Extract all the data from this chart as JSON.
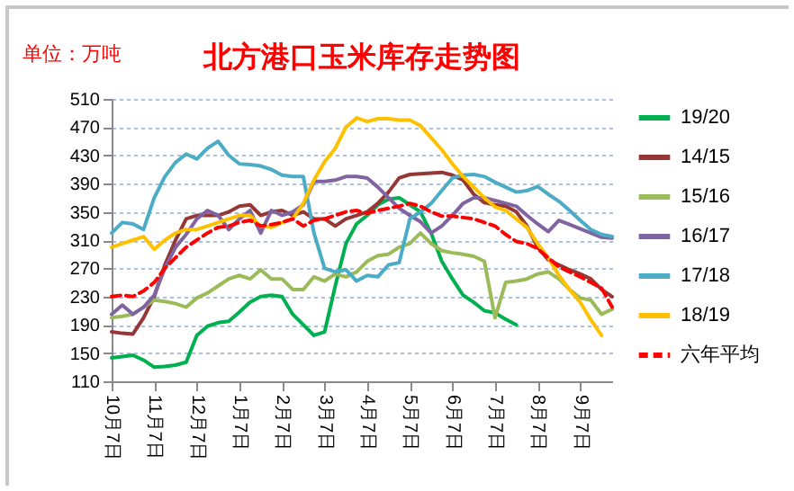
{
  "chart_data": {
    "type": "line",
    "title": "北方港口玉米库存走势图",
    "ylabel": "单位：万吨",
    "categories": [
      "10月7日",
      null,
      null,
      null,
      "11月7日",
      null,
      null,
      null,
      "12月7日",
      null,
      null,
      null,
      "1月7日",
      null,
      null,
      null,
      "2月7日",
      null,
      null,
      null,
      "3月7日",
      null,
      null,
      null,
      "4月7日",
      null,
      null,
      null,
      "5月7日",
      null,
      null,
      null,
      "6月7日",
      null,
      null,
      null,
      "7月7日",
      null,
      null,
      null,
      "8月7日",
      null,
      null,
      null,
      "9月7日",
      null,
      null,
      null
    ],
    "ylim": [
      110,
      510
    ],
    "yticks": [
      110,
      150,
      190,
      230,
      270,
      310,
      350,
      390,
      430,
      470,
      510
    ],
    "grid": "y",
    "legend": "right",
    "series": [
      {
        "name": "19/20",
        "color": "#00b050",
        "values": [
          143,
          145,
          147,
          140,
          130,
          131,
          133,
          137,
          175,
          188,
          193,
          195,
          208,
          222,
          230,
          232,
          230,
          205,
          190,
          175,
          180,
          245,
          305,
          333,
          345,
          360,
          368,
          370,
          360,
          350,
          320,
          280,
          255,
          232,
          222,
          210,
          207,
          198,
          190,
          null,
          null,
          null,
          null,
          null,
          null,
          null,
          null,
          null
        ]
      },
      {
        "name": "14/15",
        "color": "#953735",
        "values": [
          180,
          178,
          177,
          200,
          230,
          275,
          310,
          340,
          345,
          345,
          345,
          350,
          358,
          360,
          345,
          350,
          352,
          345,
          350,
          340,
          340,
          330,
          340,
          345,
          350,
          362,
          378,
          398,
          403,
          404,
          405,
          406,
          402,
          395,
          375,
          363,
          360,
          358,
          350,
          330,
          300,
          282,
          275,
          268,
          262,
          255,
          240,
          230
        ]
      },
      {
        "name": "15/16",
        "color": "#9bbb59",
        "values": [
          200,
          202,
          205,
          215,
          225,
          223,
          220,
          215,
          228,
          235,
          245,
          255,
          260,
          255,
          268,
          255,
          255,
          240,
          240,
          258,
          252,
          262,
          258,
          265,
          280,
          288,
          290,
          300,
          305,
          320,
          305,
          295,
          292,
          290,
          287,
          280,
          200,
          250,
          252,
          255,
          262,
          265,
          255,
          240,
          228,
          225,
          205,
          212
        ]
      },
      {
        "name": "16/17",
        "color": "#8064a2",
        "values": [
          205,
          218,
          205,
          215,
          232,
          270,
          300,
          318,
          340,
          352,
          345,
          325,
          340,
          352,
          320,
          352,
          345,
          350,
          360,
          393,
          393,
          395,
          400,
          400,
          398,
          385,
          370,
          355,
          345,
          336,
          320,
          330,
          345,
          362,
          370,
          370,
          366,
          362,
          358,
          345,
          333,
          322,
          338,
          332,
          326,
          320,
          314,
          313
        ]
      },
      {
        "name": "17/18",
        "color": "#4bacc6",
        "values": [
          320,
          335,
          333,
          325,
          370,
          400,
          420,
          432,
          425,
          440,
          450,
          430,
          418,
          417,
          415,
          410,
          402,
          400,
          400,
          320,
          270,
          265,
          268,
          252,
          260,
          258,
          275,
          278,
          340,
          350,
          362,
          380,
          398,
          402,
          403,
          400,
          392,
          385,
          378,
          380,
          386,
          375,
          365,
          352,
          338,
          325,
          318,
          315
        ]
      },
      {
        "name": "18/19",
        "color": "#ffc000",
        "values": [
          300,
          305,
          310,
          315,
          297,
          310,
          320,
          325,
          325,
          330,
          335,
          340,
          345,
          345,
          330,
          328,
          335,
          340,
          362,
          395,
          421,
          440,
          470,
          483,
          478,
          482,
          482,
          480,
          480,
          472,
          455,
          438,
          418,
          400,
          385,
          370,
          357,
          352,
          340,
          328,
          305,
          285,
          260,
          240,
          222,
          197,
          175,
          null
        ]
      },
      {
        "name": "六年平均",
        "color": "#ff0000",
        "line_style": "dashed",
        "values": [
          230,
          232,
          230,
          238,
          250,
          270,
          285,
          300,
          310,
          320,
          328,
          330,
          335,
          338,
          330,
          332,
          335,
          340,
          330,
          338,
          340,
          345,
          350,
          352,
          348,
          352,
          355,
          358,
          362,
          358,
          350,
          344,
          344,
          342,
          340,
          335,
          330,
          318,
          308,
          305,
          298,
          285,
          272,
          265,
          258,
          250,
          242,
          215
        ]
      }
    ]
  }
}
